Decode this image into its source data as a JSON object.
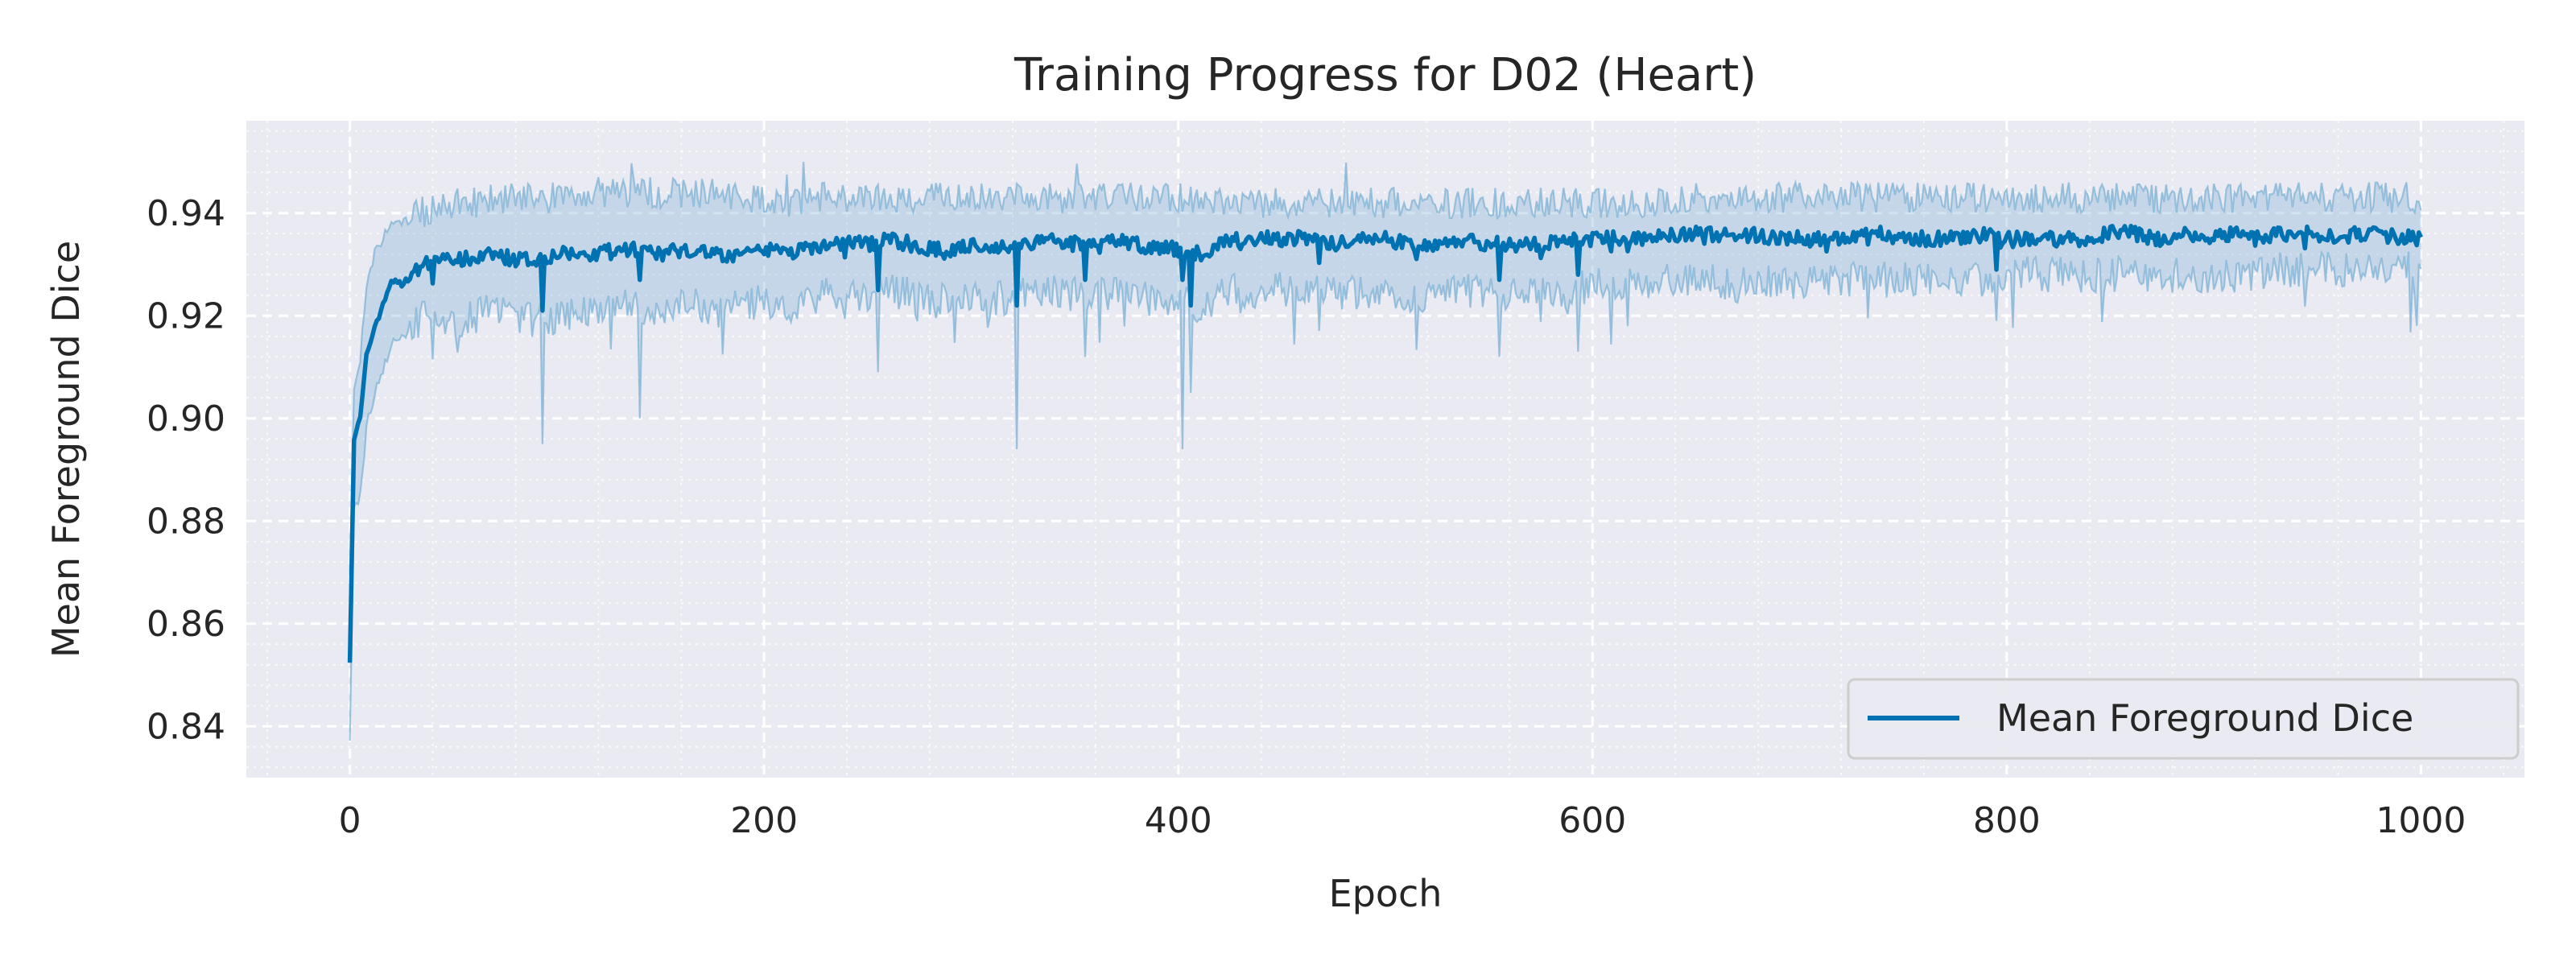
{
  "chart_data": {
    "type": "line",
    "title": "Training Progress for D02 (Heart)",
    "xlabel": "Epoch",
    "ylabel": "Mean Foreground Dice",
    "xlim": [
      -50,
      1050
    ],
    "ylim": [
      0.83,
      0.958
    ],
    "xticks": [
      0,
      200,
      400,
      600,
      800,
      1000
    ],
    "xtick_labels": [
      "0",
      "200",
      "400",
      "600",
      "800",
      "1000"
    ],
    "yticks": [
      0.84,
      0.86,
      0.88,
      0.9,
      0.92,
      0.94
    ],
    "ytick_labels": [
      "0.84",
      "0.86",
      "0.88",
      "0.90",
      "0.92",
      "0.94"
    ],
    "grid": true,
    "minor_grid": true,
    "legend_position": "bottom-right",
    "series": [
      {
        "name": "Mean Foreground Dice",
        "color": "#0072b2",
        "band_color": "#7fb3d5",
        "x": [
          0,
          2,
          5,
          8,
          12,
          16,
          20,
          25,
          30,
          35,
          40,
          50,
          60,
          70,
          80,
          90,
          100,
          110,
          120,
          130,
          140,
          150,
          160,
          170,
          180,
          190,
          200,
          210,
          220,
          230,
          240,
          250,
          260,
          270,
          280,
          290,
          300,
          310,
          320,
          330,
          340,
          350,
          360,
          370,
          380,
          390,
          400,
          410,
          420,
          430,
          440,
          450,
          460,
          470,
          480,
          490,
          500,
          510,
          520,
          530,
          540,
          550,
          560,
          570,
          580,
          590,
          600,
          610,
          620,
          630,
          640,
          650,
          660,
          670,
          680,
          690,
          700,
          710,
          720,
          730,
          740,
          750,
          760,
          770,
          780,
          790,
          800,
          810,
          820,
          830,
          840,
          850,
          860,
          870,
          880,
          890,
          900,
          910,
          920,
          930,
          940,
          950,
          960,
          970,
          980,
          990,
          1000
        ],
        "mean": [
          0.853,
          0.896,
          0.9,
          0.912,
          0.918,
          0.922,
          0.927,
          0.926,
          0.928,
          0.93,
          0.93,
          0.931,
          0.931,
          0.932,
          0.931,
          0.931,
          0.932,
          0.932,
          0.932,
          0.933,
          0.933,
          0.932,
          0.933,
          0.933,
          0.932,
          0.932,
          0.933,
          0.932,
          0.933,
          0.934,
          0.934,
          0.934,
          0.935,
          0.934,
          0.933,
          0.933,
          0.934,
          0.933,
          0.934,
          0.934,
          0.935,
          0.934,
          0.934,
          0.935,
          0.934,
          0.933,
          0.933,
          0.932,
          0.934,
          0.935,
          0.935,
          0.935,
          0.935,
          0.934,
          0.934,
          0.935,
          0.935,
          0.934,
          0.934,
          0.934,
          0.935,
          0.934,
          0.934,
          0.934,
          0.934,
          0.935,
          0.935,
          0.935,
          0.935,
          0.935,
          0.936,
          0.936,
          0.936,
          0.935,
          0.936,
          0.935,
          0.935,
          0.935,
          0.935,
          0.936,
          0.936,
          0.935,
          0.935,
          0.935,
          0.935,
          0.936,
          0.935,
          0.935,
          0.935,
          0.935,
          0.935,
          0.936,
          0.936,
          0.935,
          0.935,
          0.936,
          0.935,
          0.936,
          0.935,
          0.936,
          0.936,
          0.936,
          0.935,
          0.936,
          0.936,
          0.935,
          0.936
        ],
        "lower": [
          0.836,
          0.882,
          0.885,
          0.898,
          0.905,
          0.91,
          0.914,
          0.916,
          0.918,
          0.92,
          0.919,
          0.919,
          0.92,
          0.921,
          0.92,
          0.919,
          0.92,
          0.921,
          0.921,
          0.922,
          0.921,
          0.92,
          0.922,
          0.922,
          0.921,
          0.922,
          0.923,
          0.922,
          0.923,
          0.924,
          0.924,
          0.924,
          0.925,
          0.924,
          0.923,
          0.923,
          0.924,
          0.923,
          0.924,
          0.924,
          0.925,
          0.924,
          0.924,
          0.925,
          0.924,
          0.923,
          0.923,
          0.922,
          0.924,
          0.925,
          0.925,
          0.925,
          0.925,
          0.924,
          0.924,
          0.925,
          0.925,
          0.924,
          0.924,
          0.924,
          0.925,
          0.924,
          0.924,
          0.924,
          0.924,
          0.925,
          0.926,
          0.926,
          0.926,
          0.926,
          0.927,
          0.927,
          0.927,
          0.926,
          0.927,
          0.926,
          0.927,
          0.927,
          0.927,
          0.927,
          0.927,
          0.927,
          0.927,
          0.927,
          0.927,
          0.927,
          0.928,
          0.928,
          0.928,
          0.928,
          0.928,
          0.928,
          0.928,
          0.928,
          0.928,
          0.928,
          0.928,
          0.928,
          0.928,
          0.929,
          0.929,
          0.929,
          0.929,
          0.929,
          0.929,
          0.929,
          0.929
        ],
        "upper": [
          0.87,
          0.905,
          0.912,
          0.925,
          0.932,
          0.935,
          0.938,
          0.938,
          0.939,
          0.94,
          0.941,
          0.942,
          0.942,
          0.943,
          0.943,
          0.943,
          0.943,
          0.943,
          0.944,
          0.944,
          0.944,
          0.944,
          0.944,
          0.944,
          0.944,
          0.943,
          0.943,
          0.942,
          0.943,
          0.943,
          0.943,
          0.943,
          0.943,
          0.943,
          0.943,
          0.943,
          0.943,
          0.943,
          0.943,
          0.943,
          0.943,
          0.943,
          0.943,
          0.943,
          0.943,
          0.943,
          0.943,
          0.942,
          0.942,
          0.942,
          0.942,
          0.942,
          0.942,
          0.942,
          0.942,
          0.942,
          0.942,
          0.942,
          0.942,
          0.942,
          0.942,
          0.942,
          0.942,
          0.942,
          0.942,
          0.942,
          0.942,
          0.942,
          0.942,
          0.942,
          0.943,
          0.943,
          0.943,
          0.943,
          0.943,
          0.943,
          0.943,
          0.943,
          0.943,
          0.943,
          0.943,
          0.943,
          0.943,
          0.943,
          0.943,
          0.943,
          0.943,
          0.943,
          0.943,
          0.943,
          0.943,
          0.943,
          0.943,
          0.943,
          0.943,
          0.943,
          0.943,
          0.943,
          0.943,
          0.943,
          0.943,
          0.943,
          0.943,
          0.943,
          0.943,
          0.943,
          0.943
        ],
        "dips": [
          {
            "x": 93,
            "mean": 0.921,
            "low": 0.895
          },
          {
            "x": 140,
            "mean": 0.927,
            "low": 0.9
          },
          {
            "x": 255,
            "mean": 0.925,
            "low": 0.909
          },
          {
            "x": 322,
            "mean": 0.922,
            "low": 0.894
          },
          {
            "x": 355,
            "mean": 0.927,
            "low": 0.912
          },
          {
            "x": 402,
            "mean": 0.927,
            "low": 0.894
          },
          {
            "x": 406,
            "mean": 0.922,
            "low": 0.905
          },
          {
            "x": 555,
            "mean": 0.927,
            "low": 0.912
          },
          {
            "x": 593,
            "mean": 0.928,
            "low": 0.913
          },
          {
            "x": 795,
            "mean": 0.929,
            "low": 0.919
          }
        ]
      }
    ]
  }
}
